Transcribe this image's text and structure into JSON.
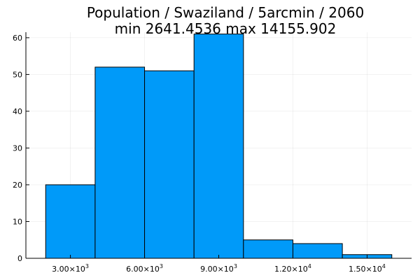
{
  "chart_data": {
    "type": "bar",
    "title": "Population / Swaziland / 5arcmin / 2060",
    "subtitle": "min 2641.4536  max 14155.902",
    "xlabel": "",
    "ylabel": "",
    "bin_edges": [
      2000,
      4000,
      6000,
      8000,
      10000,
      12000,
      14000,
      16000
    ],
    "values": [
      20,
      52,
      51,
      61,
      5,
      4,
      1
    ],
    "xlim": [
      1200,
      16800
    ],
    "ylim": [
      0,
      61.5
    ],
    "x_ticks": [
      {
        "value": 3000,
        "mantissa": "3.00×10",
        "exp": "3"
      },
      {
        "value": 6000,
        "mantissa": "6.00×10",
        "exp": "3"
      },
      {
        "value": 9000,
        "mantissa": "9.00×10",
        "exp": "3"
      },
      {
        "value": 12000,
        "mantissa": "1.20×10",
        "exp": "4"
      },
      {
        "value": 15000,
        "mantissa": "1.50×10",
        "exp": "4"
      }
    ],
    "y_ticks": [
      0,
      10,
      20,
      30,
      40,
      50,
      60
    ],
    "bar_color": "#009af9",
    "grid": true,
    "legend": "none"
  }
}
